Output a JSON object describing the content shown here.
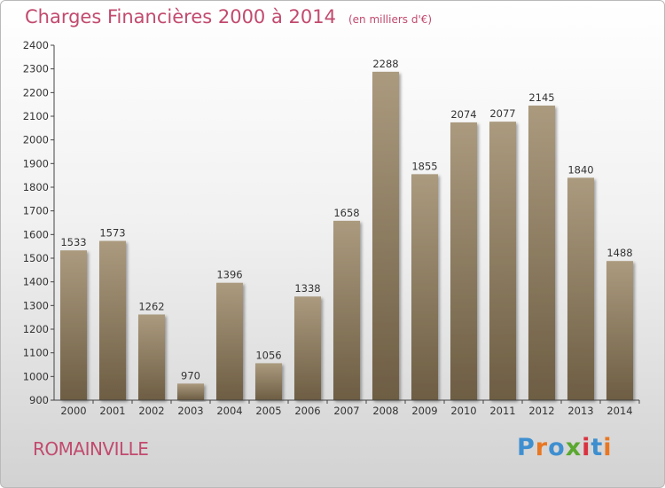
{
  "header": {
    "title": "Charges Financières 2000 à 2014",
    "unit": "(en milliers d'€)"
  },
  "footer": {
    "city": "ROMAINVILLE",
    "logo": "Proxiti"
  },
  "colors": {
    "bar_top": "#ab9a7e",
    "bar_bottom": "#6d5d43",
    "title": "#c24a6e",
    "logo_letters": [
      "#3e8fd0",
      "#e87722",
      "#3e8fd0",
      "#5aa830",
      "#d9333f",
      "#3e8fd0",
      "#e87722"
    ]
  },
  "chart_data": {
    "type": "bar",
    "categories": [
      "2000",
      "2001",
      "2002",
      "2003",
      "2004",
      "2005",
      "2006",
      "2007",
      "2008",
      "2009",
      "2010",
      "2011",
      "2012",
      "2013",
      "2014"
    ],
    "values": [
      1533,
      1573,
      1262,
      970,
      1396,
      1056,
      1338,
      1658,
      2288,
      1855,
      2074,
      2077,
      2145,
      1840,
      1488
    ],
    "data_labels": [
      "1533",
      "1573",
      "1262",
      "970",
      "1396",
      "1056",
      "1338",
      "1658",
      "2288",
      "1855",
      "2074",
      "2077",
      "2145",
      "1840",
      "1488"
    ],
    "y_ticks": [
      "900",
      "1000",
      "1100",
      "1200",
      "1300",
      "1400",
      "1500",
      "1600",
      "1700",
      "1800",
      "1900",
      "2000",
      "2100",
      "2200",
      "2300",
      "2400"
    ],
    "ylim": [
      900,
      2400
    ],
    "grid": false,
    "legend": "none"
  }
}
